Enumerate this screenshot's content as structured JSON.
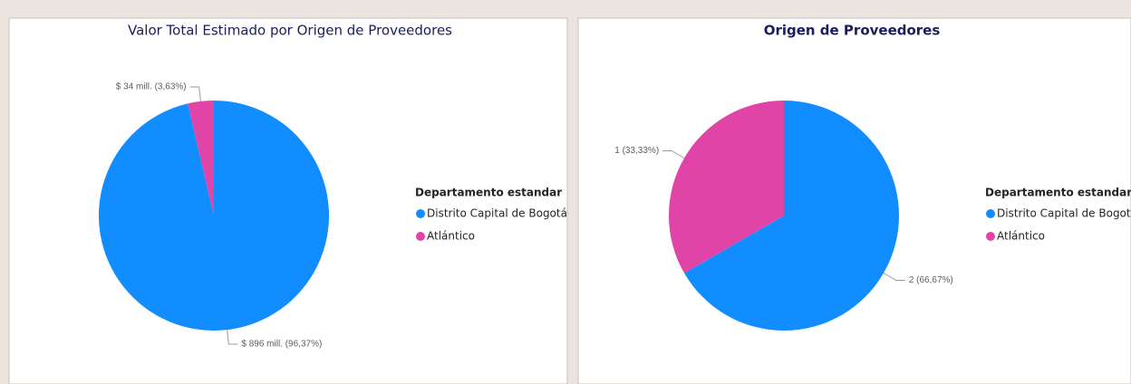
{
  "chart_data": [
    {
      "type": "pie",
      "title": "Valor Total Estimado por Origen de Proveedores",
      "title_bold": false,
      "legend_title": "Departamento estandar",
      "categories": [
        "Distrito Capital de Bogotá",
        "Atlántico"
      ],
      "values": [
        896,
        34
      ],
      "value_labels": [
        "$ 896 mill. (96,37%)",
        "$ 34 mill. (3,63%)"
      ],
      "colors": [
        "#118dff",
        "#e044a7"
      ],
      "legend": "right"
    },
    {
      "type": "pie",
      "title": "Origen de Proveedores",
      "title_bold": true,
      "legend_title": "Departamento estandar",
      "categories": [
        "Distrito Capital de Bogotá",
        "Atlántico"
      ],
      "values": [
        2,
        1
      ],
      "value_labels": [
        "2 (66,67%)",
        "1 (33,33%)"
      ],
      "colors": [
        "#118dff",
        "#e044a7"
      ],
      "legend": "right"
    }
  ]
}
